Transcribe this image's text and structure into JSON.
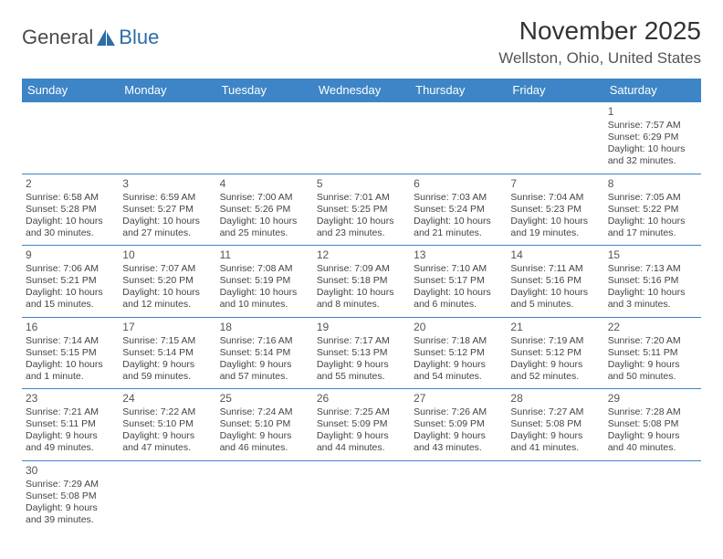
{
  "logo": {
    "text1": "General",
    "text2": "Blue"
  },
  "title": "November 2025",
  "location": "Wellston, Ohio, United States",
  "colors": {
    "header_bg": "#3d85c6",
    "header_text": "#ffffff",
    "border": "#3d85c6",
    "logo_text": "#4a4a4a",
    "logo_accent": "#2e6da4"
  },
  "day_headers": [
    "Sunday",
    "Monday",
    "Tuesday",
    "Wednesday",
    "Thursday",
    "Friday",
    "Saturday"
  ],
  "weeks": [
    [
      null,
      null,
      null,
      null,
      null,
      null,
      {
        "n": "1",
        "sr": "Sunrise: 7:57 AM",
        "ss": "Sunset: 6:29 PM",
        "dl": "Daylight: 10 hours and 32 minutes."
      }
    ],
    [
      {
        "n": "2",
        "sr": "Sunrise: 6:58 AM",
        "ss": "Sunset: 5:28 PM",
        "dl": "Daylight: 10 hours and 30 minutes."
      },
      {
        "n": "3",
        "sr": "Sunrise: 6:59 AM",
        "ss": "Sunset: 5:27 PM",
        "dl": "Daylight: 10 hours and 27 minutes."
      },
      {
        "n": "4",
        "sr": "Sunrise: 7:00 AM",
        "ss": "Sunset: 5:26 PM",
        "dl": "Daylight: 10 hours and 25 minutes."
      },
      {
        "n": "5",
        "sr": "Sunrise: 7:01 AM",
        "ss": "Sunset: 5:25 PM",
        "dl": "Daylight: 10 hours and 23 minutes."
      },
      {
        "n": "6",
        "sr": "Sunrise: 7:03 AM",
        "ss": "Sunset: 5:24 PM",
        "dl": "Daylight: 10 hours and 21 minutes."
      },
      {
        "n": "7",
        "sr": "Sunrise: 7:04 AM",
        "ss": "Sunset: 5:23 PM",
        "dl": "Daylight: 10 hours and 19 minutes."
      },
      {
        "n": "8",
        "sr": "Sunrise: 7:05 AM",
        "ss": "Sunset: 5:22 PM",
        "dl": "Daylight: 10 hours and 17 minutes."
      }
    ],
    [
      {
        "n": "9",
        "sr": "Sunrise: 7:06 AM",
        "ss": "Sunset: 5:21 PM",
        "dl": "Daylight: 10 hours and 15 minutes."
      },
      {
        "n": "10",
        "sr": "Sunrise: 7:07 AM",
        "ss": "Sunset: 5:20 PM",
        "dl": "Daylight: 10 hours and 12 minutes."
      },
      {
        "n": "11",
        "sr": "Sunrise: 7:08 AM",
        "ss": "Sunset: 5:19 PM",
        "dl": "Daylight: 10 hours and 10 minutes."
      },
      {
        "n": "12",
        "sr": "Sunrise: 7:09 AM",
        "ss": "Sunset: 5:18 PM",
        "dl": "Daylight: 10 hours and 8 minutes."
      },
      {
        "n": "13",
        "sr": "Sunrise: 7:10 AM",
        "ss": "Sunset: 5:17 PM",
        "dl": "Daylight: 10 hours and 6 minutes."
      },
      {
        "n": "14",
        "sr": "Sunrise: 7:11 AM",
        "ss": "Sunset: 5:16 PM",
        "dl": "Daylight: 10 hours and 5 minutes."
      },
      {
        "n": "15",
        "sr": "Sunrise: 7:13 AM",
        "ss": "Sunset: 5:16 PM",
        "dl": "Daylight: 10 hours and 3 minutes."
      }
    ],
    [
      {
        "n": "16",
        "sr": "Sunrise: 7:14 AM",
        "ss": "Sunset: 5:15 PM",
        "dl": "Daylight: 10 hours and 1 minute."
      },
      {
        "n": "17",
        "sr": "Sunrise: 7:15 AM",
        "ss": "Sunset: 5:14 PM",
        "dl": "Daylight: 9 hours and 59 minutes."
      },
      {
        "n": "18",
        "sr": "Sunrise: 7:16 AM",
        "ss": "Sunset: 5:14 PM",
        "dl": "Daylight: 9 hours and 57 minutes."
      },
      {
        "n": "19",
        "sr": "Sunrise: 7:17 AM",
        "ss": "Sunset: 5:13 PM",
        "dl": "Daylight: 9 hours and 55 minutes."
      },
      {
        "n": "20",
        "sr": "Sunrise: 7:18 AM",
        "ss": "Sunset: 5:12 PM",
        "dl": "Daylight: 9 hours and 54 minutes."
      },
      {
        "n": "21",
        "sr": "Sunrise: 7:19 AM",
        "ss": "Sunset: 5:12 PM",
        "dl": "Daylight: 9 hours and 52 minutes."
      },
      {
        "n": "22",
        "sr": "Sunrise: 7:20 AM",
        "ss": "Sunset: 5:11 PM",
        "dl": "Daylight: 9 hours and 50 minutes."
      }
    ],
    [
      {
        "n": "23",
        "sr": "Sunrise: 7:21 AM",
        "ss": "Sunset: 5:11 PM",
        "dl": "Daylight: 9 hours and 49 minutes."
      },
      {
        "n": "24",
        "sr": "Sunrise: 7:22 AM",
        "ss": "Sunset: 5:10 PM",
        "dl": "Daylight: 9 hours and 47 minutes."
      },
      {
        "n": "25",
        "sr": "Sunrise: 7:24 AM",
        "ss": "Sunset: 5:10 PM",
        "dl": "Daylight: 9 hours and 46 minutes."
      },
      {
        "n": "26",
        "sr": "Sunrise: 7:25 AM",
        "ss": "Sunset: 5:09 PM",
        "dl": "Daylight: 9 hours and 44 minutes."
      },
      {
        "n": "27",
        "sr": "Sunrise: 7:26 AM",
        "ss": "Sunset: 5:09 PM",
        "dl": "Daylight: 9 hours and 43 minutes."
      },
      {
        "n": "28",
        "sr": "Sunrise: 7:27 AM",
        "ss": "Sunset: 5:08 PM",
        "dl": "Daylight: 9 hours and 41 minutes."
      },
      {
        "n": "29",
        "sr": "Sunrise: 7:28 AM",
        "ss": "Sunset: 5:08 PM",
        "dl": "Daylight: 9 hours and 40 minutes."
      }
    ],
    [
      {
        "n": "30",
        "sr": "Sunrise: 7:29 AM",
        "ss": "Sunset: 5:08 PM",
        "dl": "Daylight: 9 hours and 39 minutes."
      },
      null,
      null,
      null,
      null,
      null,
      null
    ]
  ]
}
